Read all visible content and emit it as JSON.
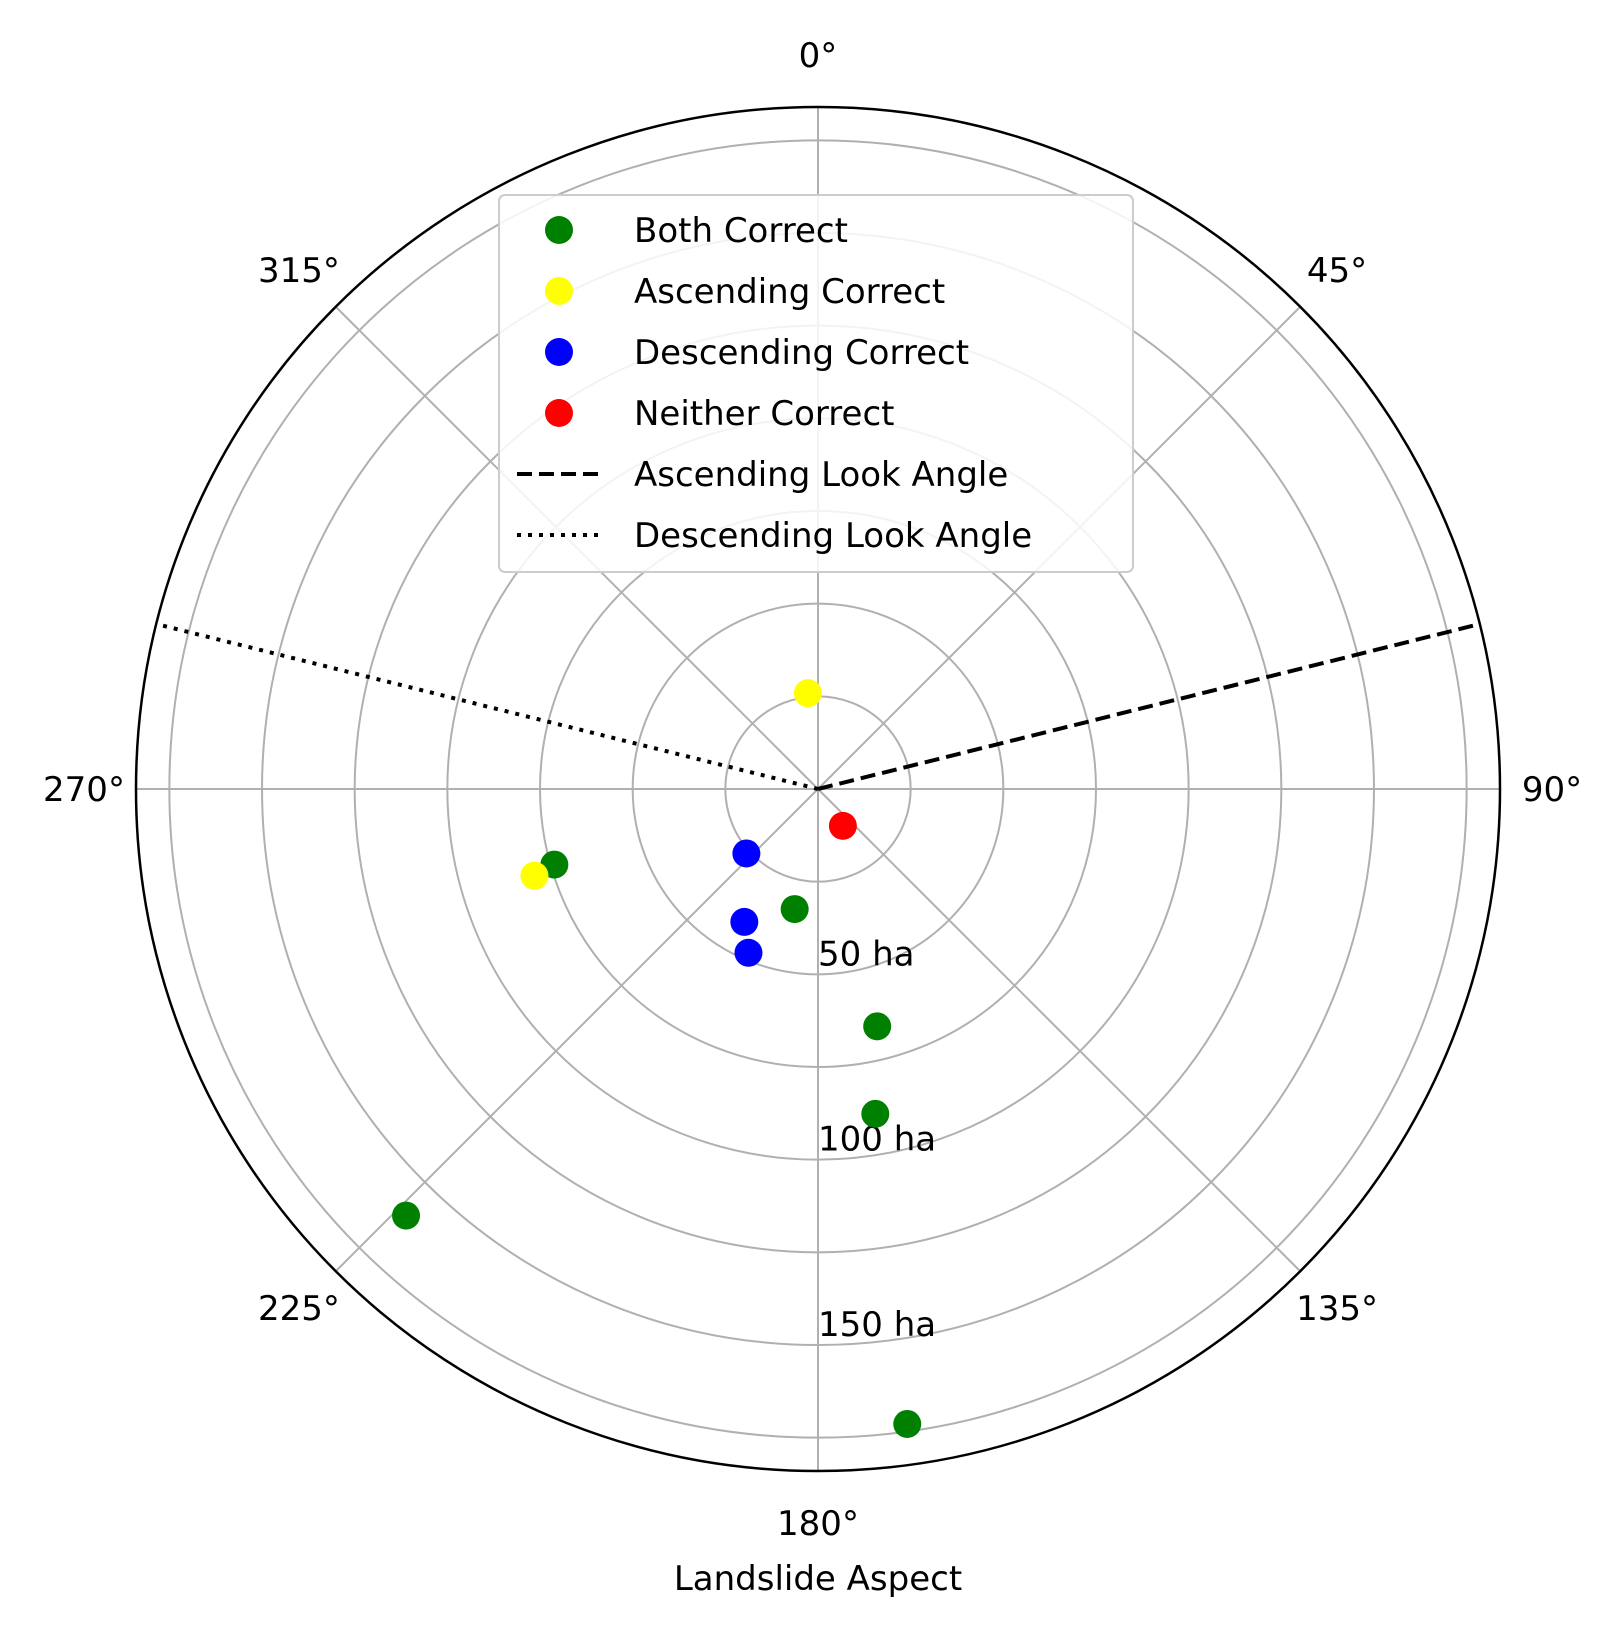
{
  "chart_data": {
    "type": "scatter",
    "projection": "polar",
    "theta_direction": "clockwise",
    "theta_zero": "north",
    "xlabel": "Landslide Aspect",
    "theta_ticks": [
      0,
      45,
      90,
      135,
      180,
      225,
      270,
      315
    ],
    "theta_tick_labels": [
      "0°",
      "45°",
      "90°",
      "135°",
      "180°",
      "225°",
      "270°",
      "315°"
    ],
    "r_ticks": [
      50,
      100,
      150
    ],
    "r_tick_labels": [
      "50 ha",
      "100 ha",
      "150 ha"
    ],
    "r_tick_label_angle": 180,
    "rlim": [
      0,
      184
    ],
    "grid": true,
    "legend_position": "top-center",
    "series": [
      {
        "name": "Both Correct",
        "color": "#008000",
        "marker": "circle",
        "points": [
          {
            "theta": 191,
            "r": 33
          },
          {
            "theta": 166,
            "r": 66
          },
          {
            "theta": 172,
            "r": 173
          },
          {
            "theta": 170,
            "r": 89
          },
          {
            "theta": 254,
            "r": 74
          },
          {
            "theta": 224,
            "r": 160
          }
        ]
      },
      {
        "name": "Ascending Correct",
        "color": "#ffff00",
        "marker": "circle",
        "points": [
          {
            "theta": 354,
            "r": 26
          },
          {
            "theta": 253,
            "r": 80
          }
        ]
      },
      {
        "name": "Descending Correct",
        "color": "#0000ff",
        "marker": "circle",
        "points": [
          {
            "theta": 228,
            "r": 26
          },
          {
            "theta": 209,
            "r": 41
          },
          {
            "theta": 203,
            "r": 48
          }
        ]
      },
      {
        "name": "Neither Correct",
        "color": "#ff0000",
        "marker": "circle",
        "points": [
          {
            "theta": 146,
            "r": 12
          }
        ]
      }
    ],
    "lines": [
      {
        "name": "Ascending Look Angle",
        "style": "dashed",
        "color": "#000000",
        "theta": 76,
        "r": [
          0,
          184
        ]
      },
      {
        "name": "Descending Look Angle",
        "style": "dotted",
        "color": "#000000",
        "theta": 284,
        "r": [
          0,
          184
        ]
      }
    ]
  }
}
